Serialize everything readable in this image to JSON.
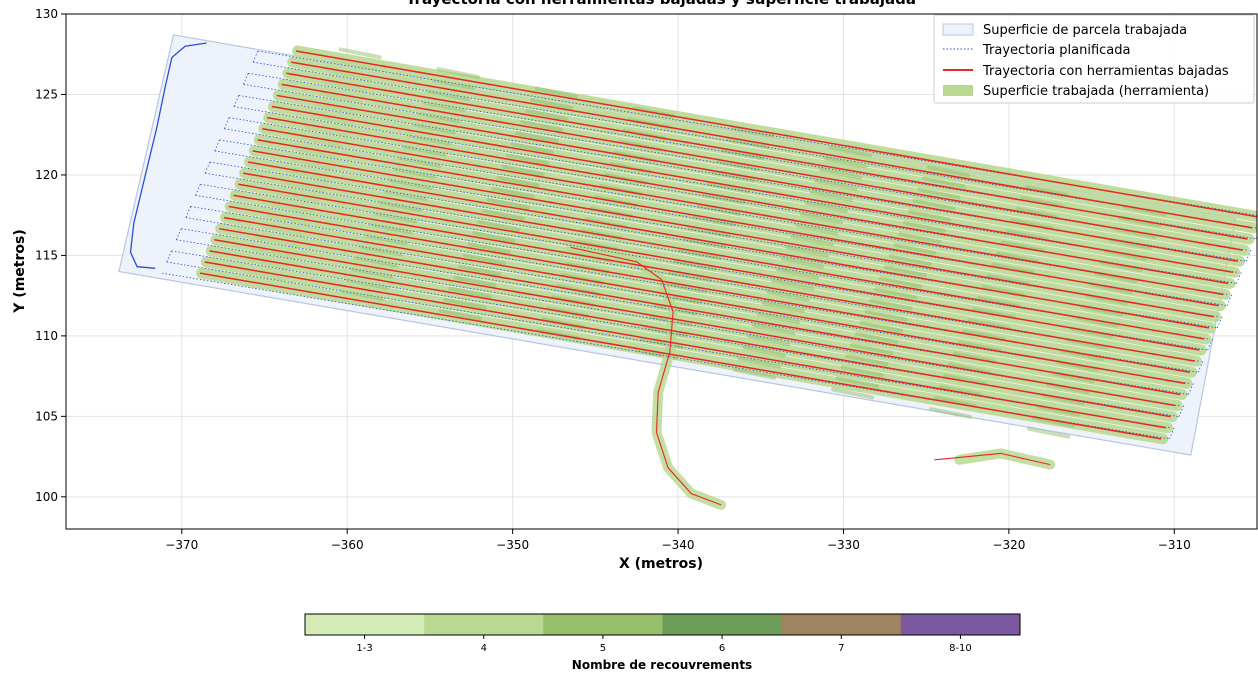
{
  "chart_data": {
    "type": "line",
    "title": "Trayectoria con herramientas bajadas y superficie trabajada",
    "xlabel": "X (metros)",
    "ylabel": "Y (metros)",
    "xlim": [
      -377,
      -305
    ],
    "ylim": [
      98,
      130
    ],
    "xticks": [
      -370,
      -360,
      -350,
      -340,
      -330,
      -320,
      -310
    ],
    "yticks": [
      100,
      105,
      110,
      115,
      120,
      125,
      130
    ],
    "xtick_labels": [
      "−370",
      "−360",
      "−350",
      "−340",
      "−330",
      "−320",
      "−310"
    ],
    "ytick_labels": [
      "100",
      "105",
      "110",
      "115",
      "120",
      "125",
      "130"
    ],
    "grid": true,
    "legend_position": "top-right",
    "legend": [
      {
        "label": "Superficie de parcela trabajada",
        "style": "patch-outline"
      },
      {
        "label": "Trayectoria planificada",
        "style": "dotted-line"
      },
      {
        "label": "Trayectoria con herramientas bajadas",
        "style": "solid-line"
      },
      {
        "label": "Superficie trabajada (herramienta)",
        "style": "patch-fill"
      }
    ],
    "field_polygon": [
      [
        -370.5,
        128.7
      ],
      [
        -373.8,
        114.0
      ],
      [
        -309.0,
        102.6
      ],
      [
        -306.3,
        117.3
      ]
    ],
    "passes": {
      "count": 21,
      "start_left": [
        -371.2,
        113.9
      ],
      "start_right": [
        -311.0,
        103.6
      ],
      "step": [
        0.29,
        0.69
      ]
    },
    "headland_curve": [
      [
        -368.5,
        128.2
      ],
      [
        -369.8,
        128.0
      ],
      [
        -370.6,
        127.3
      ],
      [
        -371.0,
        125.5
      ],
      [
        -371.5,
        123.0
      ],
      [
        -372.2,
        120.0
      ],
      [
        -372.9,
        117.0
      ],
      [
        -373.1,
        115.2
      ],
      [
        -372.7,
        114.3
      ],
      [
        -371.6,
        114.2
      ]
    ],
    "crossing_track": [
      [
        -346.5,
        115.5
      ],
      [
        -342.5,
        114.6
      ],
      [
        -341.0,
        113.5
      ],
      [
        -340.3,
        111.5
      ],
      [
        -340.5,
        109.0
      ],
      [
        -341.2,
        106.5
      ],
      [
        -341.3,
        104.0
      ],
      [
        -340.6,
        101.8
      ],
      [
        -339.2,
        100.2
      ],
      [
        -337.4,
        99.5
      ]
    ],
    "isolated_track": [
      [
        -324.5,
        102.3
      ],
      [
        -320.5,
        102.7
      ],
      [
        -317.5,
        102.0
      ]
    ],
    "coverage_colorbar": {
      "label": "Nombre de recouvrements",
      "categories": [
        "1-3",
        "4",
        "5",
        "6",
        "7",
        "8-10"
      ],
      "colors": [
        "#d5ebb5",
        "#b9d990",
        "#97c06d",
        "#6c9e5a",
        "#a08461",
        "#7b59a0"
      ]
    },
    "colors": {
      "planned": "#2b4fd8",
      "lowered": "#e8252b",
      "coverage": "#b9d990",
      "field_fill": "#eef2fb",
      "field_edge": "#b9c6e0"
    }
  }
}
